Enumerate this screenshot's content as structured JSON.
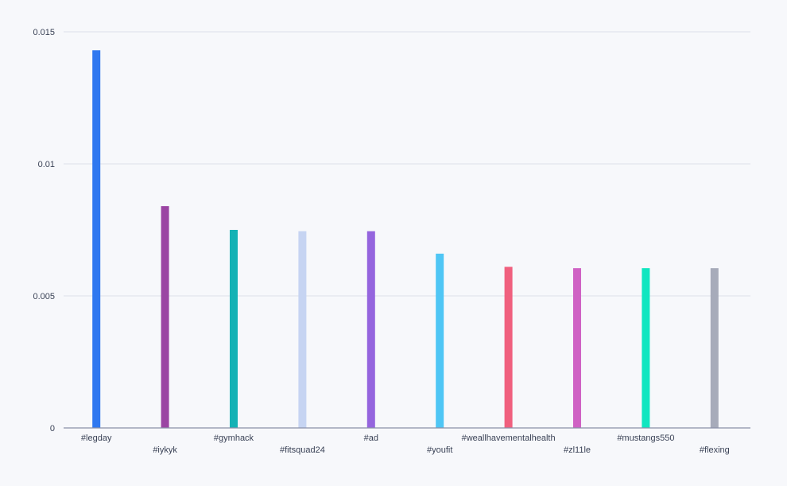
{
  "chart_data": {
    "type": "bar",
    "title": "",
    "xlabel": "",
    "ylabel": "",
    "categories": [
      "#legday",
      "#iykyk",
      "#gymhack",
      "#fitsquad24",
      "#ad",
      "#youfit",
      "#weallhavementalhealth",
      "#zl11le",
      "#mustangs550",
      "#flexing"
    ],
    "values": [
      0.0143,
      0.0084,
      0.0075,
      0.00745,
      0.00745,
      0.0066,
      0.0061,
      0.00605,
      0.00605,
      0.00605
    ],
    "colors": [
      "#2f78f0",
      "#9b45a3",
      "#14b2b5",
      "#c6d4f2",
      "#9565de",
      "#4fc6f5",
      "#f0607e",
      "#cf62c4",
      "#10e6c0",
      "#a7abba"
    ],
    "ylim": [
      0,
      0.015
    ],
    "yticks": [
      0,
      0.005,
      0.01,
      0.015
    ],
    "ytick_labels": [
      "0",
      "0.005",
      "0.01",
      "0.015"
    ],
    "grid": true,
    "legend": "none"
  }
}
